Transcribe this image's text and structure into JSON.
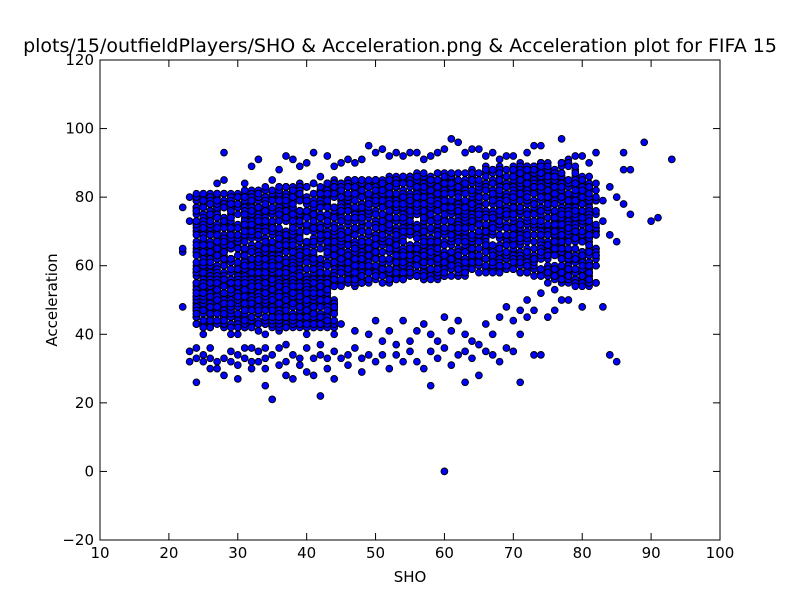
{
  "chart_data": {
    "type": "scatter",
    "title": "plots/15/outfieldPlayers/SHO & Acceleration.png & Acceleration plot for FIFA 15",
    "xlabel": "SHO",
    "ylabel": "Acceleration",
    "xlim": [
      10,
      100
    ],
    "ylim": [
      -20,
      120
    ],
    "xticks": [
      10,
      20,
      30,
      40,
      50,
      60,
      70,
      80,
      90,
      100
    ],
    "yticks": [
      -20,
      0,
      20,
      40,
      60,
      80,
      100,
      120
    ],
    "grid": false,
    "legend": "none",
    "marker_color": "#0000ff",
    "marker_edge": "#000000",
    "series": [
      {
        "points": [
          [
            22,
            48
          ],
          [
            22,
            64
          ],
          [
            22,
            65
          ],
          [
            22,
            77
          ],
          [
            23,
            80
          ],
          [
            23,
            73
          ],
          [
            23,
            35
          ],
          [
            23,
            32
          ],
          [
            24,
            26
          ],
          [
            24,
            79
          ],
          [
            24,
            33
          ],
          [
            24,
            36
          ],
          [
            25,
            34
          ],
          [
            25,
            32
          ],
          [
            25,
            48
          ],
          [
            25,
            40
          ],
          [
            26,
            30
          ],
          [
            26,
            36
          ],
          [
            26,
            33
          ],
          [
            26,
            44
          ],
          [
            27,
            84
          ],
          [
            27,
            46
          ],
          [
            27,
            32
          ],
          [
            27,
            30
          ],
          [
            28,
            93
          ],
          [
            28,
            85
          ],
          [
            28,
            33
          ],
          [
            28,
            42
          ],
          [
            28,
            28
          ],
          [
            29,
            35
          ],
          [
            29,
            32
          ],
          [
            29,
            46
          ],
          [
            29,
            40
          ],
          [
            30,
            27
          ],
          [
            30,
            34
          ],
          [
            30,
            31
          ],
          [
            30,
            40
          ],
          [
            31,
            36
          ],
          [
            31,
            33
          ],
          [
            31,
            84
          ],
          [
            31,
            43
          ],
          [
            32,
            89
          ],
          [
            32,
            32
          ],
          [
            32,
            30
          ],
          [
            32,
            36
          ],
          [
            33,
            91
          ],
          [
            33,
            35
          ],
          [
            33,
            41
          ],
          [
            33,
            32
          ],
          [
            34,
            25
          ],
          [
            34,
            30
          ],
          [
            34,
            33
          ],
          [
            34,
            36
          ],
          [
            34,
            40
          ],
          [
            35,
            21
          ],
          [
            35,
            85
          ],
          [
            35,
            34
          ],
          [
            35,
            44
          ],
          [
            36,
            88
          ],
          [
            36,
            31
          ],
          [
            36,
            36
          ],
          [
            36,
            41
          ],
          [
            37,
            92
          ],
          [
            37,
            32
          ],
          [
            37,
            28
          ],
          [
            37,
            37
          ],
          [
            38,
            91
          ],
          [
            38,
            34
          ],
          [
            38,
            27
          ],
          [
            38,
            44
          ],
          [
            39,
            89
          ],
          [
            39,
            31
          ],
          [
            39,
            33
          ],
          [
            40,
            90
          ],
          [
            40,
            29
          ],
          [
            40,
            40
          ],
          [
            40,
            36
          ],
          [
            41,
            93
          ],
          [
            41,
            33
          ],
          [
            41,
            28
          ],
          [
            41,
            45
          ],
          [
            42,
            22
          ],
          [
            42,
            86
          ],
          [
            42,
            34
          ],
          [
            42,
            37
          ],
          [
            43,
            92
          ],
          [
            43,
            33
          ],
          [
            43,
            30
          ],
          [
            44,
            89
          ],
          [
            44,
            27
          ],
          [
            44,
            40
          ],
          [
            44,
            35
          ],
          [
            45,
            90
          ],
          [
            45,
            33
          ],
          [
            45,
            43
          ],
          [
            46,
            91
          ],
          [
            46,
            34
          ],
          [
            46,
            31
          ],
          [
            47,
            90
          ],
          [
            47,
            36
          ],
          [
            47,
            41
          ],
          [
            48,
            91
          ],
          [
            48,
            29
          ],
          [
            48,
            33
          ],
          [
            49,
            95
          ],
          [
            49,
            40
          ],
          [
            49,
            34
          ],
          [
            50,
            93
          ],
          [
            50,
            32
          ],
          [
            50,
            44
          ],
          [
            51,
            94
          ],
          [
            51,
            38
          ],
          [
            51,
            34
          ],
          [
            52,
            92
          ],
          [
            52,
            30
          ],
          [
            52,
            41
          ],
          [
            53,
            93
          ],
          [
            53,
            34
          ],
          [
            53,
            37
          ],
          [
            54,
            92
          ],
          [
            54,
            32
          ],
          [
            54,
            44
          ],
          [
            55,
            93
          ],
          [
            55,
            35
          ],
          [
            55,
            38
          ],
          [
            56,
            93
          ],
          [
            56,
            32
          ],
          [
            56,
            41
          ],
          [
            57,
            91
          ],
          [
            57,
            30
          ],
          [
            57,
            43
          ],
          [
            58,
            25
          ],
          [
            58,
            92
          ],
          [
            58,
            35
          ],
          [
            58,
            40
          ],
          [
            59,
            93
          ],
          [
            59,
            33
          ],
          [
            59,
            38
          ],
          [
            60,
            0
          ],
          [
            60,
            94
          ],
          [
            60,
            36
          ],
          [
            60,
            45
          ],
          [
            61,
            97
          ],
          [
            61,
            31
          ],
          [
            61,
            41
          ],
          [
            62,
            96
          ],
          [
            62,
            34
          ],
          [
            62,
            44
          ],
          [
            63,
            93
          ],
          [
            63,
            26
          ],
          [
            63,
            35
          ],
          [
            63,
            40
          ],
          [
            64,
            94
          ],
          [
            64,
            33
          ],
          [
            64,
            38
          ],
          [
            65,
            94
          ],
          [
            65,
            28
          ],
          [
            65,
            37
          ],
          [
            66,
            92
          ],
          [
            66,
            35
          ],
          [
            66,
            43
          ],
          [
            67,
            93
          ],
          [
            67,
            34
          ],
          [
            67,
            40
          ],
          [
            68,
            91
          ],
          [
            68,
            32
          ],
          [
            68,
            45
          ],
          [
            69,
            92
          ],
          [
            69,
            36
          ],
          [
            69,
            48
          ],
          [
            70,
            92
          ],
          [
            70,
            35
          ],
          [
            70,
            44
          ],
          [
            71,
            26
          ],
          [
            71,
            90
          ],
          [
            71,
            40
          ],
          [
            71,
            47
          ],
          [
            72,
            93
          ],
          [
            72,
            45
          ],
          [
            72,
            50
          ],
          [
            73,
            95
          ],
          [
            73,
            34
          ],
          [
            73,
            47
          ],
          [
            74,
            95
          ],
          [
            74,
            34
          ],
          [
            74,
            52
          ],
          [
            75,
            90
          ],
          [
            75,
            45
          ],
          [
            75,
            55
          ],
          [
            76,
            88
          ],
          [
            76,
            47
          ],
          [
            76,
            53
          ],
          [
            77,
            97
          ],
          [
            77,
            50
          ],
          [
            77,
            55
          ],
          [
            78,
            91
          ],
          [
            78,
            50
          ],
          [
            78,
            58
          ],
          [
            79,
            92
          ],
          [
            79,
            55
          ],
          [
            79,
            62
          ],
          [
            80,
            92
          ],
          [
            80,
            48
          ],
          [
            80,
            58
          ],
          [
            81,
            90
          ],
          [
            81,
            59
          ],
          [
            81,
            65
          ],
          [
            82,
            93
          ],
          [
            82,
            60
          ],
          [
            82,
            70
          ],
          [
            83,
            48
          ],
          [
            83,
            73
          ],
          [
            83,
            79
          ],
          [
            84,
            34
          ],
          [
            84,
            83
          ],
          [
            84,
            69
          ],
          [
            85,
            32
          ],
          [
            85,
            67
          ],
          [
            85,
            80
          ],
          [
            86,
            93
          ],
          [
            86,
            88
          ],
          [
            86,
            78
          ],
          [
            87,
            75
          ],
          [
            87,
            88
          ],
          [
            89,
            96
          ],
          [
            90,
            73
          ],
          [
            91,
            74
          ],
          [
            93,
            91
          ]
        ]
      }
    ]
  }
}
